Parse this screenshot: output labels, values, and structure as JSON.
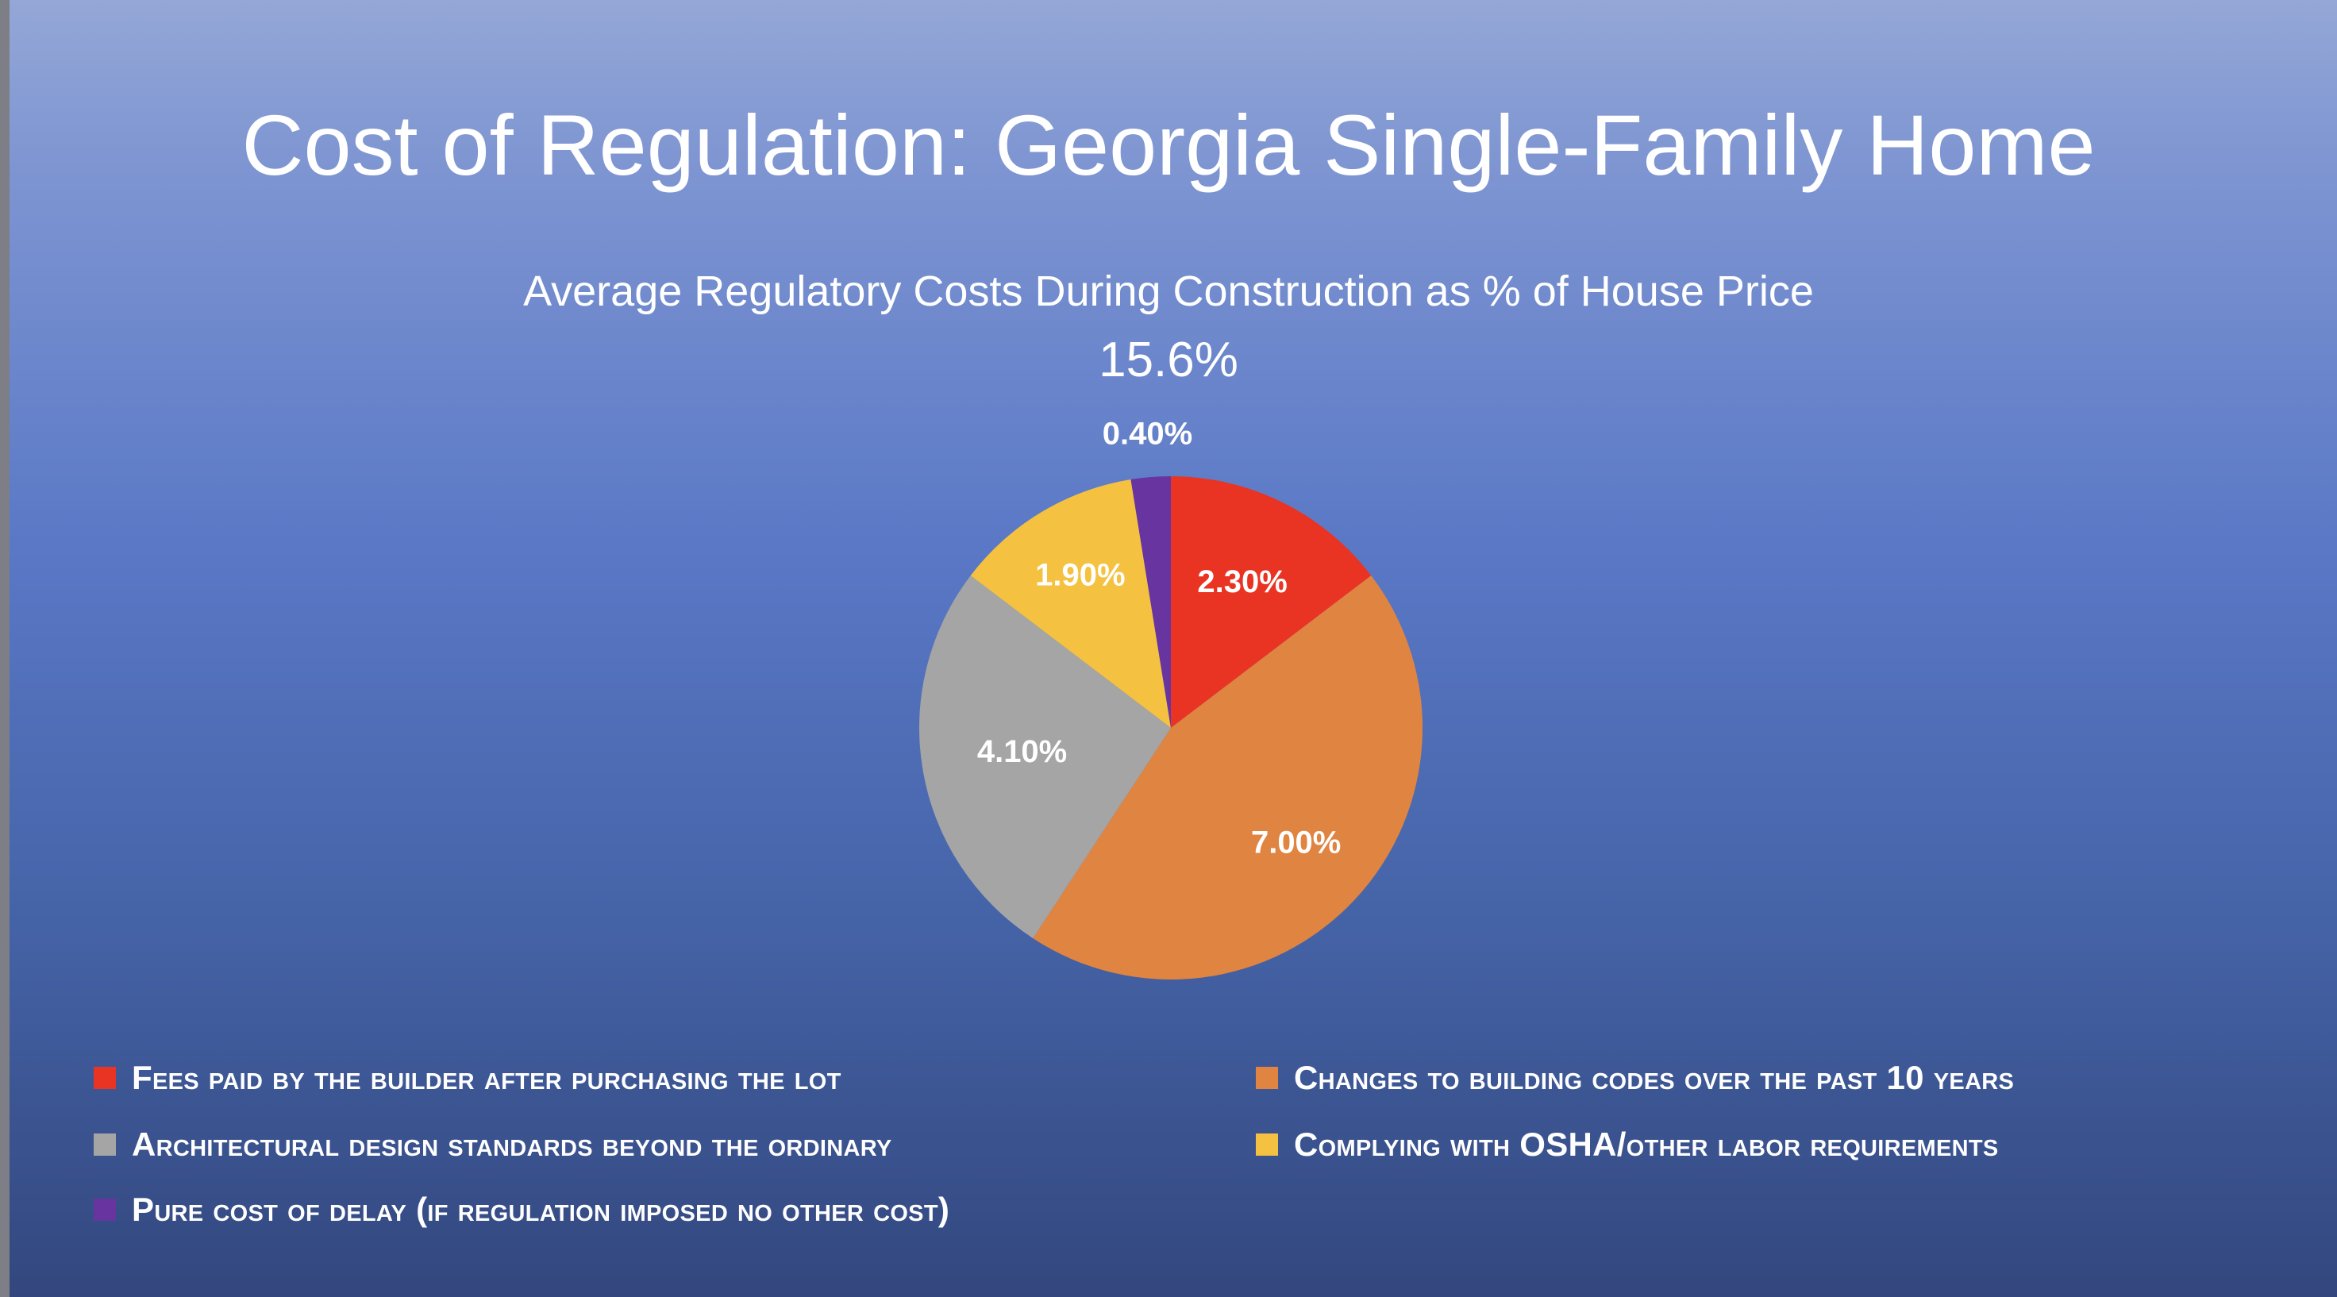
{
  "slide": {
    "title": "Cost of Regulation: Georgia Single-Family Home",
    "subtitle": "Average Regulatory Costs During Construction as % of House Price",
    "total": "15.6%"
  },
  "chart_data": {
    "type": "pie",
    "title": "Average Regulatory Costs During Construction as % of House Price",
    "legend_position": "bottom",
    "slices": [
      {
        "name": "Fees paid by the builder after purchasing the lot",
        "value": 2.3,
        "label": "2.30%",
        "color": "#e93423"
      },
      {
        "name": "Changes to building codes over the past 10 years",
        "value": 7.0,
        "label": "7.00%",
        "color": "#e08442"
      },
      {
        "name": "Architectural design standards beyond the ordinary",
        "value": 4.1,
        "label": "4.10%",
        "color": "#a5a5a5"
      },
      {
        "name": "Complying with OSHA/other labor requirements",
        "value": 1.9,
        "label": "1.90%",
        "color": "#f4c240"
      },
      {
        "name": "Pure cost of delay (if regulation imposed no other cost)",
        "value": 0.4,
        "label": "0.40%",
        "color": "#6835a0"
      }
    ]
  }
}
